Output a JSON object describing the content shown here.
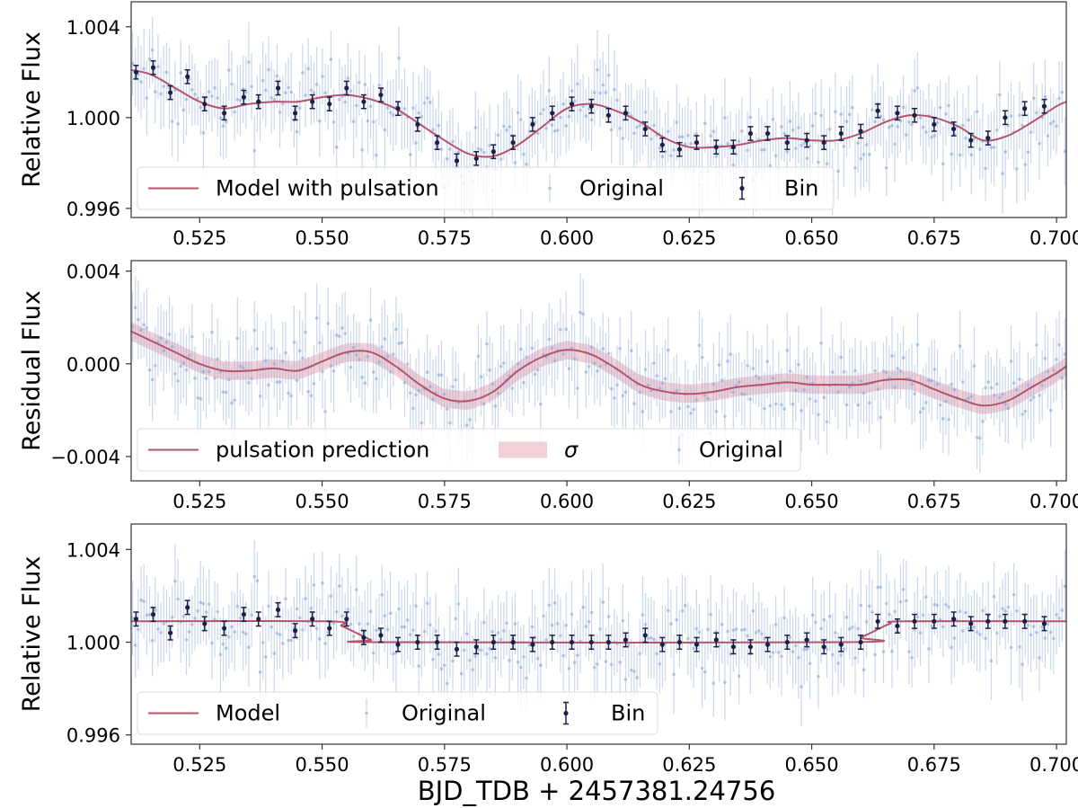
{
  "figure": {
    "xlabel": "BJD_TDB + 2457381.24756"
  },
  "chart_data": [
    {
      "type": "scatter",
      "ylabel": "Relative Flux",
      "xlim": [
        0.511,
        0.702
      ],
      "ylim": [
        0.9956,
        1.0051
      ],
      "xticks": [
        0.525,
        0.55,
        0.575,
        0.6,
        0.625,
        0.65,
        0.675,
        0.7
      ],
      "xtick_labels": [
        "0.525",
        "0.550",
        "0.575",
        "0.600",
        "0.625",
        "0.650",
        "0.675",
        "0.700"
      ],
      "yticks": [
        0.996,
        1.0,
        1.004
      ],
      "ytick_labels": [
        "0.996",
        "1.000",
        "1.004"
      ],
      "legend": [
        "Model with pulsation",
        "Original",
        "Bin"
      ],
      "legend_position": "lower-left",
      "colors": {
        "model": "#b5546b",
        "original": "#8ba6d4",
        "bin": "#1c1f45",
        "band": "#e8a9b6"
      },
      "scatter_scale": 0.0017,
      "error_bar": 0.0015,
      "model": {
        "x": [
          0.511,
          0.515,
          0.52,
          0.525,
          0.53,
          0.535,
          0.54,
          0.545,
          0.55,
          0.555,
          0.56,
          0.565,
          0.57,
          0.575,
          0.58,
          0.585,
          0.59,
          0.595,
          0.6,
          0.605,
          0.61,
          0.615,
          0.62,
          0.625,
          0.63,
          0.635,
          0.64,
          0.645,
          0.65,
          0.655,
          0.66,
          0.665,
          0.67,
          0.675,
          0.68,
          0.685,
          0.69,
          0.695,
          0.7,
          0.702
        ],
        "y": [
          1.0021,
          1.0019,
          1.0013,
          1.0007,
          1.0004,
          1.0006,
          1.0007,
          1.0007,
          1.0009,
          1.001,
          1.0008,
          1.0004,
          0.9997,
          0.999,
          0.9984,
          0.9983,
          0.9988,
          0.9996,
          1.0004,
          1.0006,
          1.0003,
          0.9998,
          0.9991,
          0.9987,
          0.9987,
          0.9988,
          0.999,
          0.9991,
          0.999,
          0.999,
          0.9993,
          0.9998,
          1.0001,
          1.0,
          0.9996,
          0.999,
          0.9992,
          0.9998,
          1.0005,
          1.0007
        ]
      },
      "bins": {
        "x": [
          0.512,
          0.5155,
          0.519,
          0.5225,
          0.526,
          0.53,
          0.534,
          0.537,
          0.541,
          0.5445,
          0.548,
          0.5515,
          0.555,
          0.5585,
          0.562,
          0.5655,
          0.5695,
          0.5735,
          0.5775,
          0.5815,
          0.585,
          0.589,
          0.593,
          0.597,
          0.601,
          0.605,
          0.6085,
          0.612,
          0.616,
          0.6195,
          0.623,
          0.6265,
          0.6305,
          0.634,
          0.6375,
          0.641,
          0.645,
          0.649,
          0.6525,
          0.656,
          0.66,
          0.6635,
          0.6675,
          0.671,
          0.675,
          0.679,
          0.6825,
          0.686,
          0.6895,
          0.6935,
          0.6975
        ],
        "y": [
          1.002,
          1.0022,
          1.0011,
          1.0018,
          1.0006,
          1.0002,
          1.0009,
          1.0007,
          1.0013,
          1.0002,
          1.0007,
          1.0006,
          1.0013,
          1.0007,
          1.001,
          1.0004,
          0.9997,
          0.9989,
          0.9981,
          0.9982,
          0.9985,
          0.9989,
          0.9997,
          1.0002,
          1.0006,
          1.0005,
          1.0001,
          1.0002,
          0.9995,
          0.9988,
          0.9986,
          0.9989,
          0.9987,
          0.9987,
          0.9993,
          0.9993,
          0.9989,
          0.999,
          0.9989,
          0.9993,
          0.9994,
          1.0003,
          1.0002,
          1.0001,
          0.9997,
          0.9995,
          0.999,
          0.9991,
          1.0,
          1.0004,
          1.0005
        ]
      }
    },
    {
      "type": "scatter",
      "ylabel": "Residual Flux",
      "xlim": [
        0.511,
        0.702
      ],
      "ylim": [
        -0.00505,
        0.00445
      ],
      "xticks": [
        0.525,
        0.55,
        0.575,
        0.6,
        0.625,
        0.65,
        0.675,
        0.7
      ],
      "xtick_labels": [
        "0.525",
        "0.550",
        "0.575",
        "0.600",
        "0.625",
        "0.650",
        "0.675",
        "0.700"
      ],
      "yticks": [
        -0.004,
        0.0,
        0.004
      ],
      "ytick_labels": [
        "−0.004",
        "0.000",
        "0.004"
      ],
      "legend": [
        "pulsation prediction",
        "σ",
        "Original"
      ],
      "legend_position": "lower-left",
      "colors": {
        "model": "#b5546b",
        "original": "#8ba6d4",
        "bin": "#1c1f45",
        "band": "#e8a9b6"
      },
      "scatter_scale": 0.0018,
      "error_bar": 0.0015,
      "sigma": 0.0004,
      "model": {
        "x": [
          0.511,
          0.515,
          0.52,
          0.525,
          0.53,
          0.535,
          0.54,
          0.545,
          0.55,
          0.555,
          0.56,
          0.565,
          0.57,
          0.575,
          0.58,
          0.585,
          0.59,
          0.595,
          0.6,
          0.605,
          0.61,
          0.615,
          0.62,
          0.625,
          0.63,
          0.635,
          0.64,
          0.645,
          0.65,
          0.655,
          0.66,
          0.665,
          0.67,
          0.675,
          0.68,
          0.685,
          0.69,
          0.695,
          0.7,
          0.702
        ],
        "y": [
          0.0014,
          0.001,
          0.0005,
          0.0,
          -0.0003,
          -0.0003,
          -0.0002,
          -0.0003,
          0.0001,
          0.0005,
          0.0005,
          -0.0001,
          -0.0009,
          -0.0015,
          -0.0016,
          -0.0012,
          -0.0003,
          0.0003,
          0.0006,
          0.0004,
          -0.0002,
          -0.0009,
          -0.0012,
          -0.0013,
          -0.0012,
          -0.001,
          -0.0009,
          -0.0008,
          -0.0009,
          -0.0009,
          -0.0009,
          -0.0007,
          -0.0007,
          -0.0011,
          -0.0015,
          -0.0018,
          -0.0016,
          -0.001,
          -0.0004,
          -0.0001
        ]
      }
    },
    {
      "type": "scatter",
      "ylabel": "Relative Flux",
      "xlim": [
        0.511,
        0.702
      ],
      "ylim": [
        0.9956,
        1.0051
      ],
      "xticks": [
        0.525,
        0.55,
        0.575,
        0.6,
        0.625,
        0.65,
        0.675,
        0.7
      ],
      "xtick_labels": [
        "0.525",
        "0.550",
        "0.575",
        "0.600",
        "0.625",
        "0.650",
        "0.675",
        "0.700"
      ],
      "yticks": [
        0.996,
        1.0,
        1.004
      ],
      "ytick_labels": [
        "0.996",
        "1.000",
        "1.004"
      ],
      "legend": [
        "Model",
        "Original",
        "Bin"
      ],
      "legend_position": "lower-left",
      "colors": {
        "model": "#b5546b",
        "original": "#8ba6d4",
        "bin": "#1c1f45",
        "band": "#e8a9b6"
      },
      "scatter_scale": 0.0017,
      "error_bar": 0.0015,
      "model": {
        "x": [
          0.511,
          0.551,
          0.554,
          0.557,
          0.56,
          0.563,
          0.657,
          0.66,
          0.663,
          0.666,
          0.669,
          0.702
        ],
        "y": [
          1.0009,
          1.0009,
          1.0007,
          1.0004,
          1.0001,
          1.0,
          1.0,
          1.0002,
          1.0005,
          1.0008,
          1.0009,
          1.0009
        ]
      },
      "bins": {
        "x": [
          0.512,
          0.5155,
          0.519,
          0.5225,
          0.526,
          0.53,
          0.534,
          0.537,
          0.541,
          0.5445,
          0.548,
          0.5515,
          0.555,
          0.5585,
          0.562,
          0.5655,
          0.5695,
          0.5735,
          0.5775,
          0.5815,
          0.585,
          0.589,
          0.593,
          0.597,
          0.601,
          0.605,
          0.6085,
          0.612,
          0.616,
          0.6195,
          0.623,
          0.6265,
          0.6305,
          0.634,
          0.6375,
          0.641,
          0.645,
          0.649,
          0.6525,
          0.656,
          0.66,
          0.6635,
          0.6675,
          0.671,
          0.675,
          0.679,
          0.6825,
          0.686,
          0.6895,
          0.6935,
          0.6975
        ],
        "y": [
          1.001,
          1.0012,
          1.0004,
          1.0015,
          1.0008,
          1.0006,
          1.0012,
          1.001,
          1.0014,
          1.0005,
          1.001,
          1.0006,
          1.001,
          1.0002,
          1.0003,
          0.9999,
          1.0,
          1.0,
          0.9997,
          0.9998,
          1.0,
          1.0,
          0.9999,
          1.0,
          1.0,
          1.0,
          1.0,
          1.0001,
          1.0003,
          0.9999,
          1.0,
          0.9999,
          1.0001,
          0.9998,
          0.9998,
          0.9999,
          1.0,
          1.0001,
          0.9998,
          0.9999,
          1.0,
          1.0009,
          1.0007,
          1.0009,
          1.0009,
          1.001,
          1.0008,
          1.0009,
          1.0009,
          1.0009,
          1.0008
        ]
      }
    }
  ]
}
